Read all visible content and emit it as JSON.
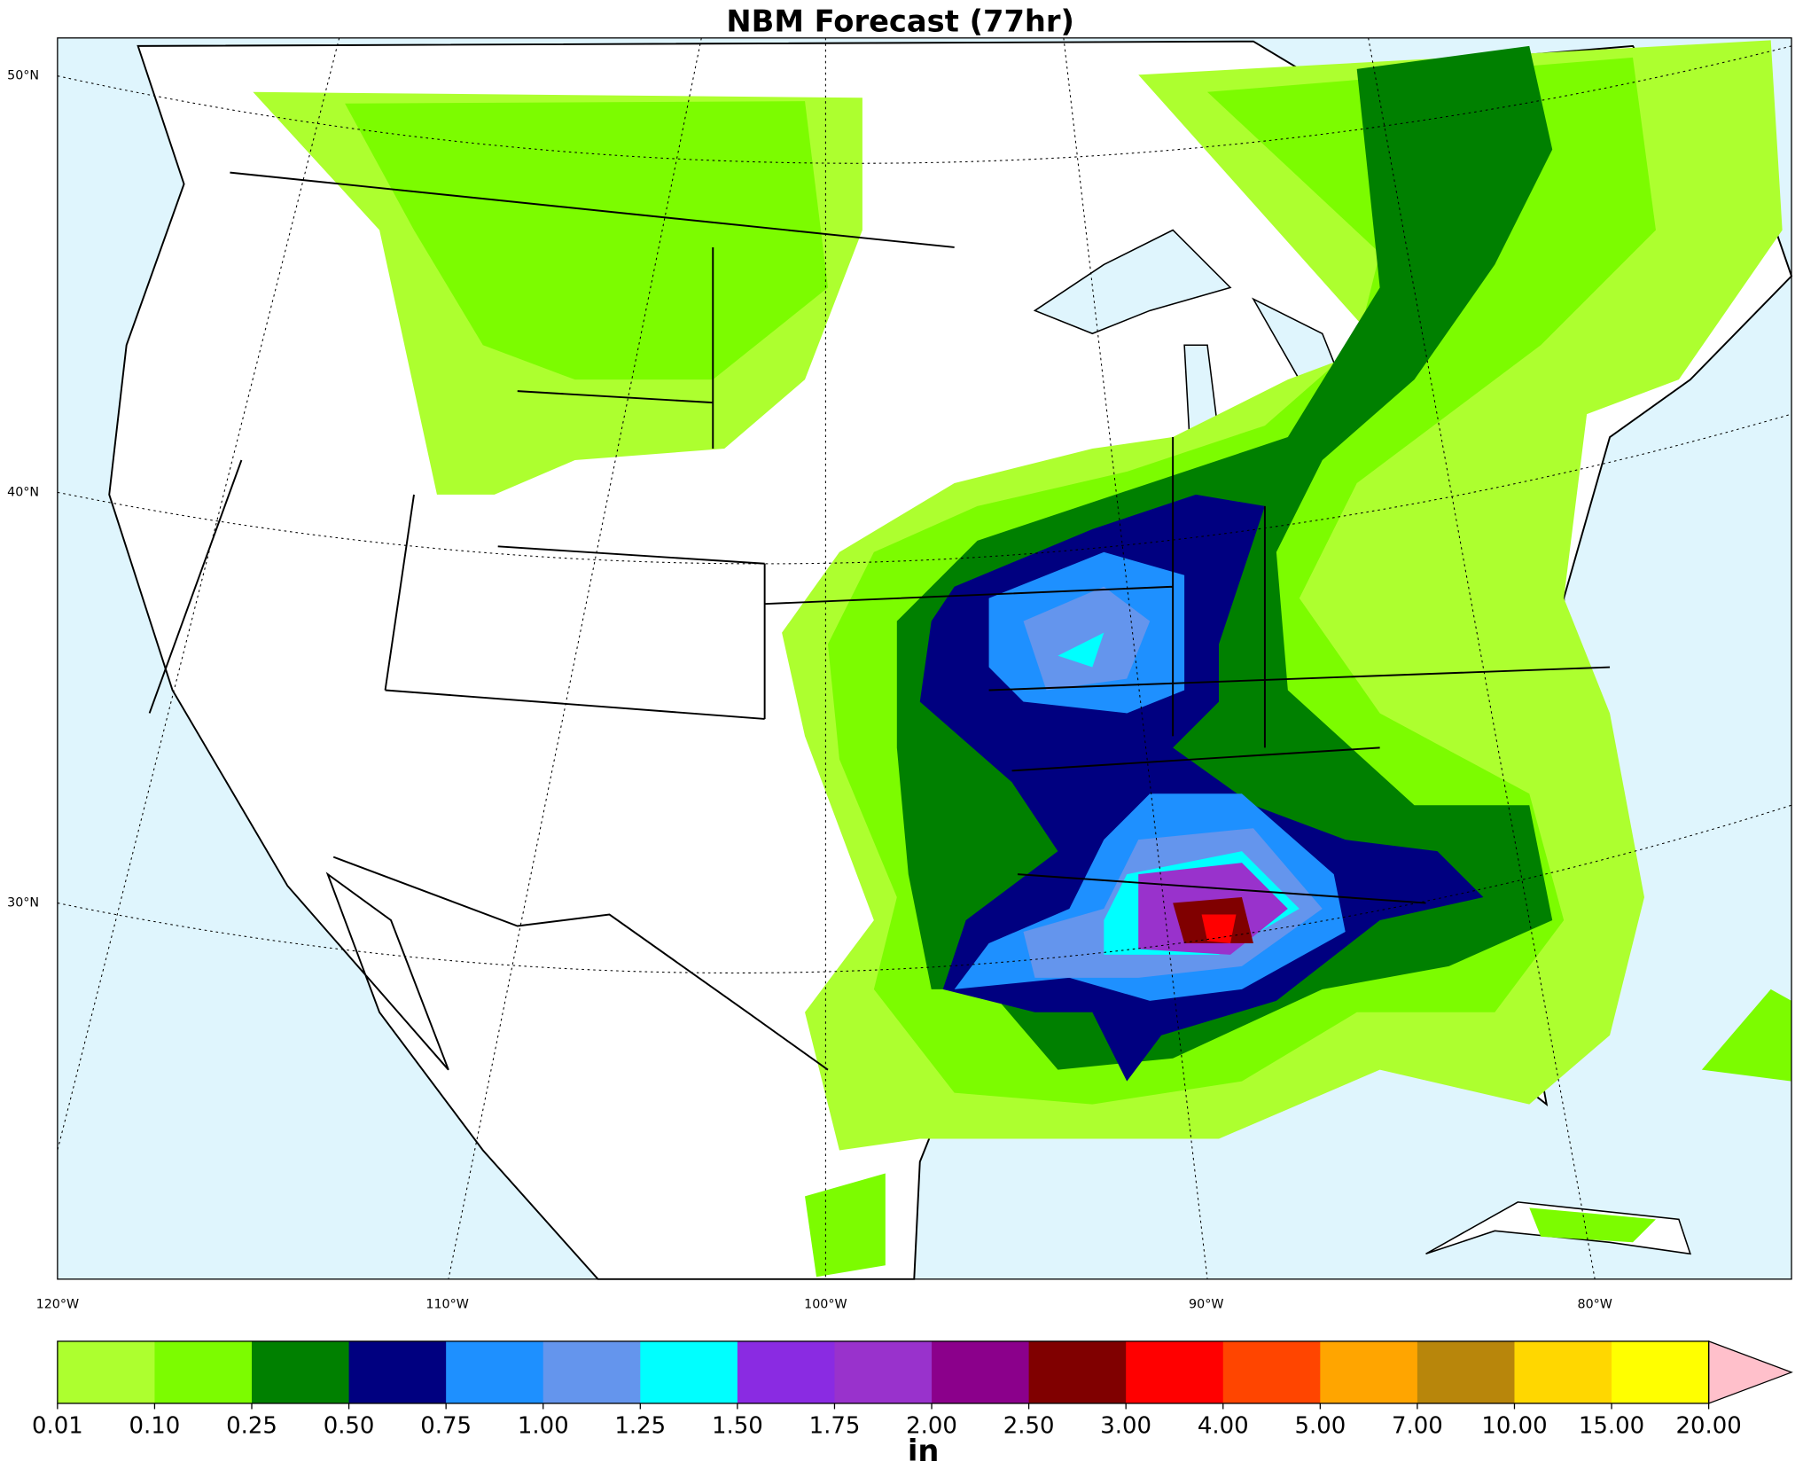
{
  "map": {
    "title": "NBM Forecast (77hr)",
    "lat_labels": [
      "50°N",
      "40°N",
      "30°N"
    ],
    "lon_labels": [
      "120°W",
      "110°W",
      "100°W",
      "90°W",
      "80°W"
    ],
    "colorbar": {
      "label": "in",
      "levels": [
        0.01,
        {
          "value": 0.1,
          "label": "0.10"
        },
        {
          "value": 0.25,
          "label": "0.25"
        },
        {
          "value": 0.5,
          "label": "0.50"
        },
        {
          "value": 0.75,
          "label": "0.75"
        },
        {
          "value": 1,
          "label": "1.00"
        },
        {
          "value": 1.25,
          "label": "1.25"
        },
        {
          "value": 1.5,
          "label": "1.50"
        },
        {
          "value": 1.75,
          "label": "1.75"
        },
        {
          "value": 2,
          "label": "2.00"
        },
        {
          "value": 2.5,
          "label": "2.50"
        },
        {
          "value": 3,
          "label": "3.00"
        },
        {
          "value": 4,
          "label": "4.00"
        },
        {
          "value": 5,
          "label": "5.00"
        },
        {
          "value": 7,
          "label": "7.00"
        },
        {
          "value": 10,
          "label": "10.00"
        },
        {
          "value": 15,
          "label": "15.00"
        },
        {
          "value": 20,
          "label": "20.00"
        }
      ],
      "colors": [
        "#adff2f",
        "#7cfc00",
        "#008000",
        "#000080",
        "#1e90ff",
        "#6495ed",
        "#00ffff",
        "#8a2be2",
        "#9932cc",
        "#8b008b",
        "#800000",
        "#ff0000",
        "#ff4500",
        "#ffa500",
        "#b8860b",
        "#ffd700",
        "#ffff00"
      ],
      "extend_color": "#ffc0cb"
    }
  }
}
